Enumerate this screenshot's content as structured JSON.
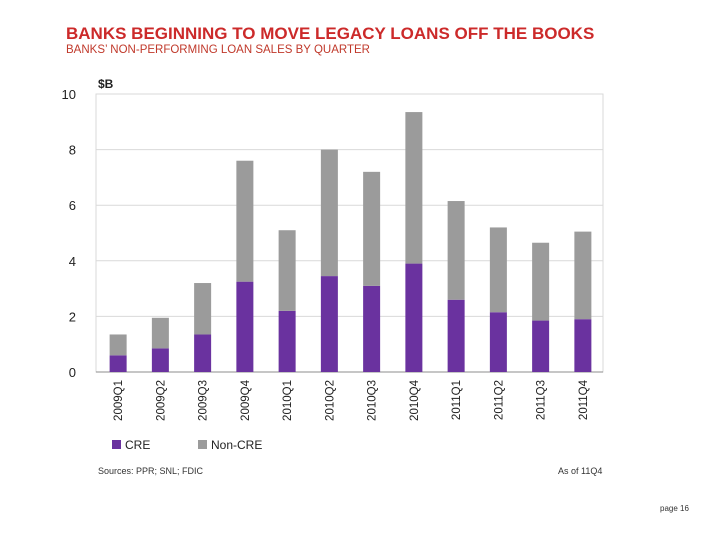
{
  "title": "BANKS BEGINNING TO MOVE LEGACY LOANS OFF THE BOOKS",
  "subtitle": "BANKS’ NON-PERFORMING LOAN SALES BY QUARTER",
  "footer": {
    "sources": "Sources: PPR; SNL; FDIC",
    "as_of": "As of 11Q4",
    "page": "page 16"
  },
  "colors": {
    "cre": "#6a329f",
    "noncre": "#9b9b9b"
  },
  "chart_data": {
    "type": "bar",
    "stacked": true,
    "ylabel": "$B",
    "ylim": [
      0,
      10
    ],
    "yticks": [
      0,
      2,
      4,
      6,
      8,
      10
    ],
    "grid": true,
    "legend_placement": "bottom-left",
    "categories": [
      "2009Q1",
      "2009Q2",
      "2009Q3",
      "2009Q4",
      "2010Q1",
      "2010Q2",
      "2010Q3",
      "2010Q4",
      "2011Q1",
      "2011Q2",
      "2011Q3",
      "2011Q4"
    ],
    "series": [
      {
        "name": "CRE",
        "values": [
          0.6,
          0.85,
          1.35,
          3.25,
          2.2,
          3.45,
          3.1,
          3.9,
          2.6,
          2.15,
          1.85,
          1.9
        ]
      },
      {
        "name": "Non-CRE",
        "values": [
          0.75,
          1.1,
          1.85,
          4.35,
          2.9,
          4.55,
          4.1,
          5.45,
          3.55,
          3.05,
          2.8,
          3.15
        ]
      }
    ]
  }
}
